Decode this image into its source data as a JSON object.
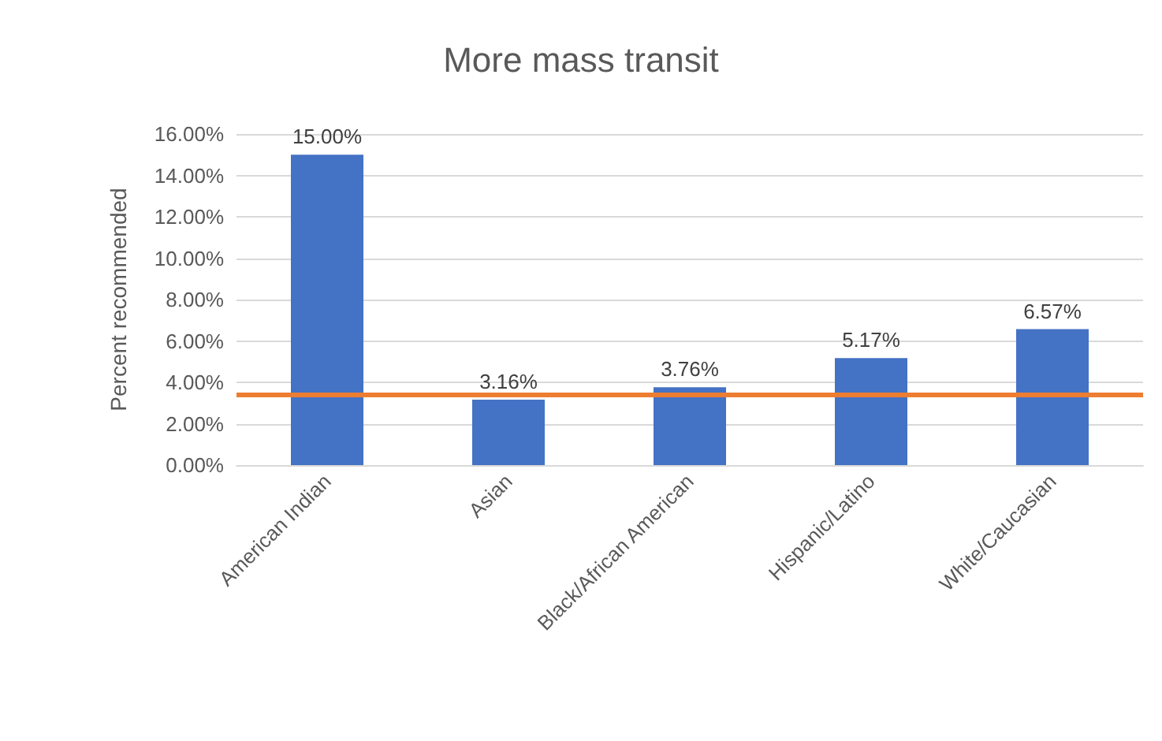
{
  "chart_data": {
    "type": "bar",
    "title": "More mass transit",
    "ylabel": "Percent recommended",
    "categories": [
      "American Indian",
      "Asian",
      "Black/African American",
      "Hispanic/Latino",
      "White/Caucasian"
    ],
    "values": [
      15.0,
      3.16,
      3.76,
      5.17,
      6.57
    ],
    "color": "#4472c4",
    "value_labels": [
      "15.00%",
      "3.16%",
      "3.76%",
      "5.17%",
      "6.57%"
    ],
    "ylim": [
      0,
      16
    ],
    "yticks": [
      {
        "value": 0,
        "label": "0.00%"
      },
      {
        "value": 2,
        "label": "2.00%"
      },
      {
        "value": 4,
        "label": "4.00%"
      },
      {
        "value": 6,
        "label": "6.00%"
      },
      {
        "value": 8,
        "label": "8.00%"
      },
      {
        "value": 10,
        "label": "10.00%"
      },
      {
        "value": 12,
        "label": "12.00%"
      },
      {
        "value": 14,
        "label": "14.00%"
      },
      {
        "value": 16,
        "label": "16.00%"
      }
    ],
    "grid": "y",
    "ref_lines": [
      {
        "axis": "y",
        "value": 3.4,
        "color": "#ed7d31"
      }
    ]
  }
}
